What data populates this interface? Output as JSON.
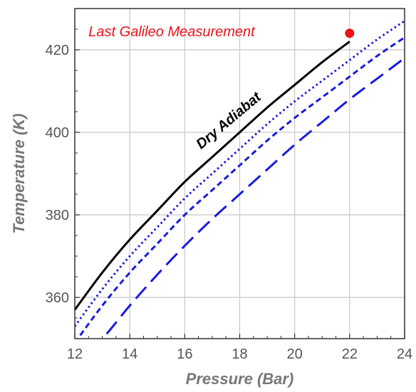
{
  "chart_data": {
    "type": "line",
    "xlabel": "Pressure (Bar)",
    "ylabel": "Temperature (K)",
    "xlim": [
      12,
      24
    ],
    "ylim": [
      350,
      430
    ],
    "x_ticks": [
      "12",
      "14",
      "16",
      "18",
      "20",
      "22",
      "24"
    ],
    "y_ticks": [
      "360",
      "380",
      "400",
      "420"
    ],
    "grid": true,
    "series": [
      {
        "style": "solid",
        "color": "#000000",
        "x": [
          12,
          13,
          14,
          15,
          16,
          17,
          18,
          19,
          20,
          21,
          22
        ],
        "y": [
          357,
          366,
          374,
          381,
          388,
          394,
          400,
          406,
          411.5,
          417,
          422
        ]
      },
      {
        "style": "dotted",
        "color": "#1a1adf",
        "x": [
          12,
          13,
          14,
          15,
          16,
          17,
          18,
          19,
          20,
          21,
          22,
          23,
          24
        ],
        "y": [
          353,
          362,
          370,
          377,
          384,
          390,
          396,
          402,
          407.5,
          412.5,
          417.5,
          422.5,
          427
        ]
      },
      {
        "style": "short-dashed",
        "color": "#1a1adf",
        "x": [
          12,
          13,
          14,
          15,
          16,
          17,
          18,
          19,
          20,
          21,
          22,
          23,
          24
        ],
        "y": [
          349,
          358,
          366,
          373,
          380,
          386,
          392,
          398,
          403.5,
          408.5,
          413.5,
          418.5,
          423
        ]
      },
      {
        "style": "long-dashed",
        "color": "#1a1adf",
        "x": [
          12.5,
          13,
          14,
          15,
          16,
          17,
          18,
          19,
          20,
          21,
          22,
          23,
          24
        ],
        "y": [
          348,
          350,
          358,
          365.5,
          372.5,
          379,
          385,
          391,
          397,
          402.5,
          408,
          413,
          418
        ]
      }
    ],
    "points": [
      {
        "x": 22,
        "y": 424,
        "color": "#e8141b"
      }
    ],
    "annotations": [
      {
        "text": "Last Galileo Measurement",
        "x": 12.5,
        "y": 424,
        "color": "#e8141b"
      },
      {
        "text": "Dry Adiabat",
        "x": 17.7,
        "y": 402,
        "color": "#000000"
      }
    ]
  }
}
